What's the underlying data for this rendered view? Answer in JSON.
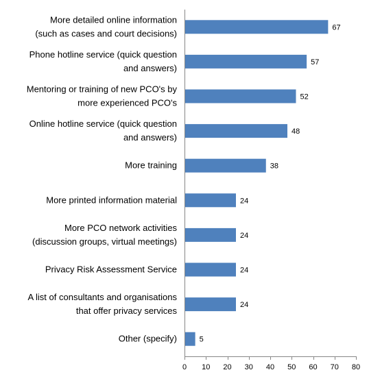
{
  "chart_data": {
    "type": "bar",
    "orientation": "horizontal",
    "categories": [
      [
        "More detailed online information",
        "(such as cases and court decisions)"
      ],
      [
        "Phone hotline service (quick question",
        "and answers)"
      ],
      [
        "Mentoring or training of new PCO's by",
        "more experienced PCO's"
      ],
      [
        "Online hotline service (quick question",
        "and answers)"
      ],
      [
        "More training"
      ],
      [
        "More printed information material"
      ],
      [
        "More PCO network activities",
        "(discussion groups, virtual meetings)"
      ],
      [
        "Privacy Risk Assessment Service"
      ],
      [
        "A list of consultants and organisations",
        "that offer privacy services"
      ],
      [
        "Other (specify)"
      ]
    ],
    "values": [
      67,
      57,
      52,
      48,
      38,
      24,
      24,
      24,
      24,
      5
    ],
    "data_labels": [
      "67",
      "57",
      "52",
      "48",
      "38",
      "24",
      "24",
      "24",
      "24",
      "5"
    ],
    "xlim": [
      0,
      80
    ],
    "xticks": [
      "0",
      "10",
      "20",
      "30",
      "40",
      "50",
      "60",
      "70",
      "80"
    ],
    "title": "",
    "xlabel": "",
    "ylabel": "",
    "grid": false,
    "legend": "none",
    "bar_color": "#4f81bd"
  }
}
